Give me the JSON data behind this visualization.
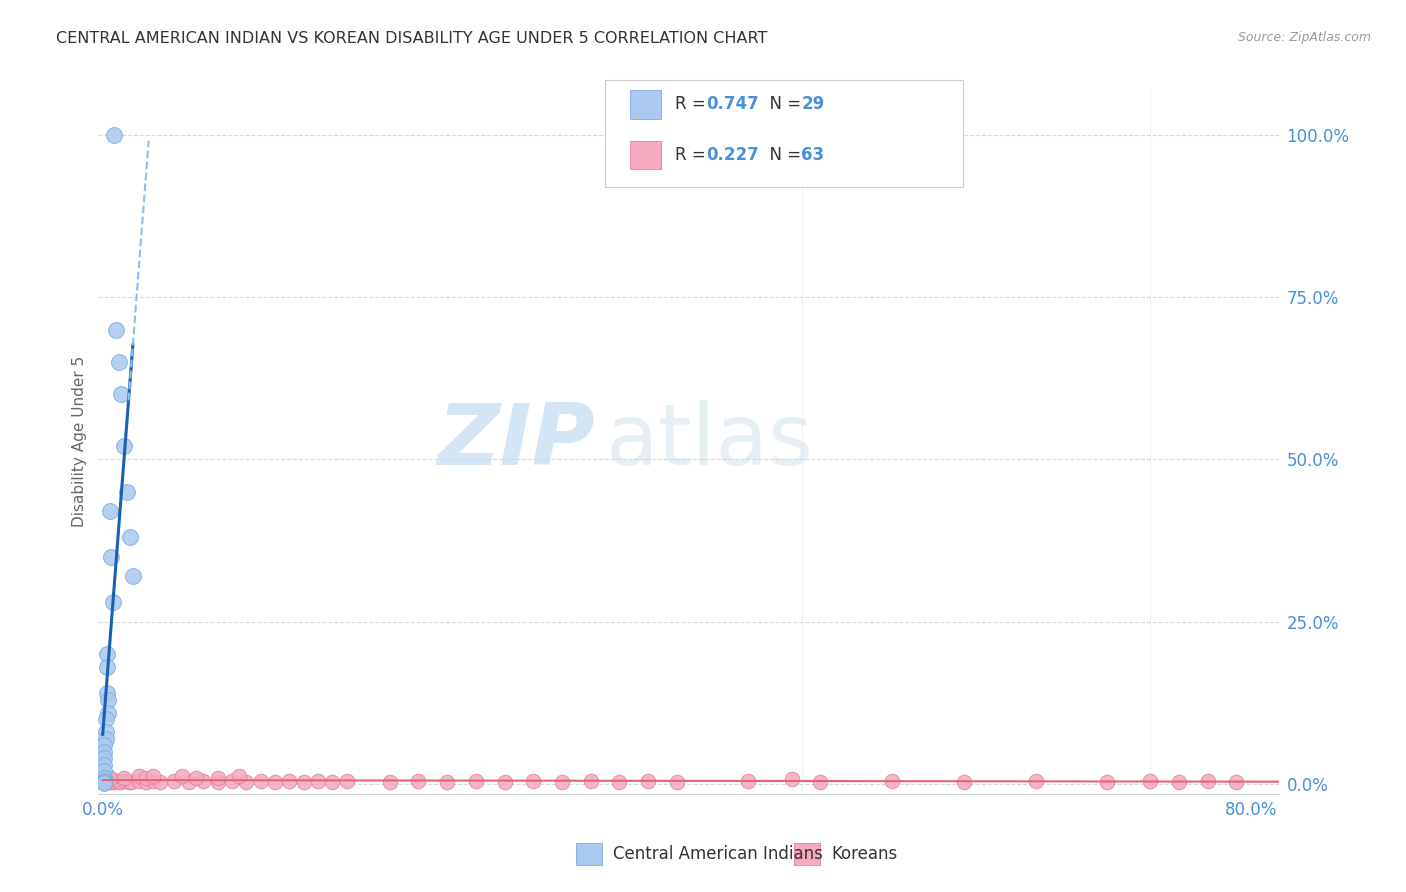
{
  "title": "CENTRAL AMERICAN INDIAN VS KOREAN DISABILITY AGE UNDER 5 CORRELATION CHART",
  "source": "Source: ZipAtlas.com",
  "ylabel": "Disability Age Under 5",
  "watermark_zip": "ZIP",
  "watermark_atlas": "atlas",
  "legend_r1": "R = ",
  "legend_v1": "0.747",
  "legend_n1": "N = ",
  "legend_nv1": "29",
  "legend_r2": "R = ",
  "legend_v2": "0.227",
  "legend_n2": "N = ",
  "legend_nv2": "63",
  "legend_color1": "#aac8f0",
  "legend_color2": "#f5aac0",
  "bottom_label1": "Central American Indians",
  "bottom_label2": "Koreans",
  "yaxis_labels": [
    "0.0%",
    "25.0%",
    "50.0%",
    "75.0%",
    "100.0%"
  ],
  "yaxis_values": [
    0.0,
    0.25,
    0.5,
    0.75,
    1.0
  ],
  "blue_scatter_x": [
    0.008,
    0.009,
    0.011,
    0.013,
    0.015,
    0.017,
    0.019,
    0.021,
    0.005,
    0.006,
    0.007,
    0.003,
    0.003,
    0.003,
    0.004,
    0.004,
    0.002,
    0.002,
    0.002,
    0.001,
    0.001,
    0.001,
    0.001,
    0.001,
    0.001,
    0.001,
    0.001,
    0.001,
    0.001
  ],
  "blue_scatter_y": [
    1.0,
    0.7,
    0.65,
    0.6,
    0.52,
    0.45,
    0.38,
    0.32,
    0.42,
    0.35,
    0.28,
    0.2,
    0.18,
    0.14,
    0.13,
    0.11,
    0.1,
    0.08,
    0.07,
    0.06,
    0.05,
    0.04,
    0.03,
    0.02,
    0.01,
    0.01,
    0.005,
    0.003,
    0.002
  ],
  "pink_scatter_x": [
    0.001,
    0.002,
    0.003,
    0.004,
    0.005,
    0.006,
    0.007,
    0.008,
    0.01,
    0.012,
    0.015,
    0.018,
    0.02,
    0.025,
    0.03,
    0.035,
    0.04,
    0.05,
    0.06,
    0.07,
    0.08,
    0.09,
    0.1,
    0.11,
    0.12,
    0.13,
    0.14,
    0.15,
    0.16,
    0.17,
    0.2,
    0.22,
    0.24,
    0.26,
    0.28,
    0.3,
    0.32,
    0.34,
    0.36,
    0.38,
    0.4,
    0.45,
    0.5,
    0.55,
    0.6,
    0.65,
    0.7,
    0.73,
    0.75,
    0.77,
    0.79,
    0.003,
    0.004,
    0.005,
    0.015,
    0.025,
    0.03,
    0.035,
    0.055,
    0.065,
    0.08,
    0.095,
    0.48
  ],
  "pink_scatter_y": [
    0.005,
    0.004,
    0.005,
    0.004,
    0.005,
    0.004,
    0.005,
    0.004,
    0.005,
    0.004,
    0.005,
    0.004,
    0.004,
    0.005,
    0.004,
    0.005,
    0.004,
    0.005,
    0.004,
    0.005,
    0.004,
    0.005,
    0.004,
    0.005,
    0.004,
    0.005,
    0.004,
    0.005,
    0.004,
    0.005,
    0.004,
    0.005,
    0.004,
    0.005,
    0.004,
    0.005,
    0.004,
    0.005,
    0.004,
    0.005,
    0.004,
    0.005,
    0.004,
    0.005,
    0.004,
    0.005,
    0.004,
    0.005,
    0.004,
    0.005,
    0.004,
    0.01,
    0.012,
    0.01,
    0.01,
    0.012,
    0.01,
    0.012,
    0.012,
    0.01,
    0.01,
    0.012,
    0.008
  ],
  "blue_line_color": "#1a5fb4",
  "pink_line_color": "#e8607a",
  "blue_dashed_color": "#90bce8",
  "scatter_blue_fcolor": "#aac8f0",
  "scatter_blue_ecolor": "#7aaae0",
  "scatter_pink_fcolor": "#f5aac0",
  "scatter_pink_ecolor": "#e080a0",
  "grid_color": "#d8d8d8",
  "axis_label_color": "#4a90d9",
  "ylabel_color": "#666666",
  "title_color": "#333333",
  "source_color": "#999999",
  "background_color": "#ffffff",
  "legend_border_color": "#cccccc",
  "text_dark": "#333333"
}
